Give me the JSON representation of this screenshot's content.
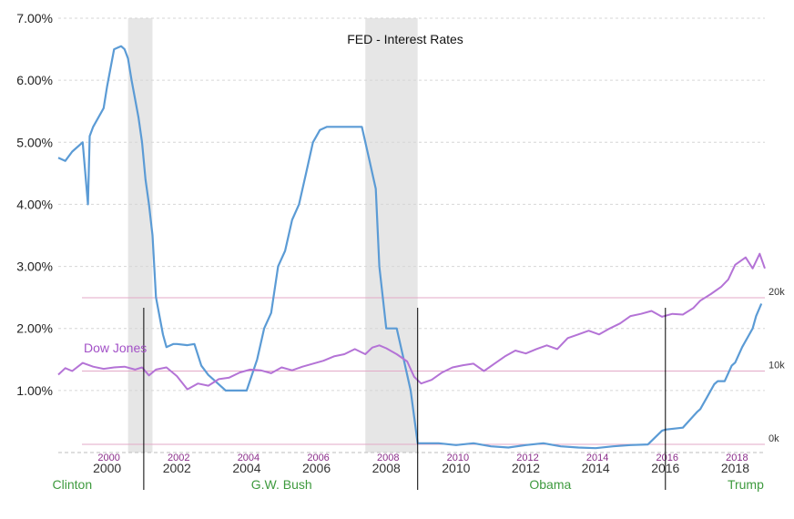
{
  "chart_data": {
    "type": "line",
    "title": "FED - Interest Rates",
    "colors": {
      "rate_line": "#5b9bd5",
      "dow_line": "#b473d6",
      "dow_gridline": "#e3a9c7",
      "recession_shade": "#e6e6e6",
      "era_text": "#3e9a3e",
      "dow_label": "#a351c7",
      "dow_year_label": "#8a2d8a"
    },
    "x_axis": {
      "range": [
        1998.6,
        2018.85
      ],
      "ticks": [
        2000,
        2002,
        2004,
        2006,
        2008,
        2010,
        2012,
        2014,
        2016,
        2018
      ],
      "tick_labels": [
        "2000",
        "2002",
        "2004",
        "2006",
        "2008",
        "2010",
        "2012",
        "2014",
        "2016",
        "2018"
      ]
    },
    "y_axis": {
      "range": [
        0,
        7.0
      ],
      "ticks": [
        1,
        2,
        3,
        4,
        5,
        6,
        7
      ],
      "tick_labels": [
        "1.00%",
        "2.00%",
        "3.00%",
        "4.00%",
        "5.00%",
        "6.00%",
        "7.00%"
      ]
    },
    "dow_axis": {
      "range": [
        0,
        20000
      ],
      "ticks": [
        0,
        10000,
        20000
      ],
      "tick_labels": [
        "0k",
        "10k",
        "20k"
      ],
      "year_labels": [
        "2000",
        "2002",
        "2004",
        "2006",
        "2008",
        "2010",
        "2012",
        "2014",
        "2016",
        "2018"
      ]
    },
    "recessions": [
      [
        2000.6,
        2001.3
      ],
      [
        2007.4,
        2008.9
      ]
    ],
    "presidency_boundaries": [
      2001.05,
      2008.9,
      2016.0
    ],
    "era_labels": [
      {
        "name": "Clinton",
        "x": 1999.0
      },
      {
        "name": "G.W. Bush",
        "x": 2005.0
      },
      {
        "name": "Obama",
        "x": 2012.7
      },
      {
        "name": "Trump",
        "x": 2018.3
      }
    ],
    "series": [
      {
        "name": "",
        "x": [
          1998.6,
          1998.8,
          1999.0,
          1999.3,
          1999.45,
          1999.5,
          1999.6,
          1999.9,
          2000.0,
          2000.2,
          2000.4,
          2000.5,
          2000.6,
          2000.7,
          2000.9,
          2001.0,
          2001.1,
          2001.2,
          2001.3,
          2001.4,
          2001.6,
          2001.7,
          2001.9,
          2002.0,
          2002.3,
          2002.5,
          2002.7,
          2002.9,
          2003.0,
          2003.4,
          2003.6,
          2003.9,
          2004.0,
          2004.3,
          2004.5,
          2004.7,
          2004.9,
          2005.1,
          2005.3,
          2005.5,
          2005.7,
          2005.9,
          2006.1,
          2006.3,
          2006.5,
          2006.7,
          2007.0,
          2007.3,
          2007.5,
          2007.6,
          2007.7,
          2007.8,
          2007.9,
          2008.0,
          2008.1,
          2008.3,
          2008.5,
          2008.7,
          2008.9,
          2009.0,
          2009.5,
          2010.0,
          2010.5,
          2011.0,
          2011.5,
          2012.0,
          2012.5,
          2013.0,
          2013.5,
          2014.0,
          2014.5,
          2015.0,
          2015.5,
          2015.9,
          2016.0,
          2016.5,
          2016.9,
          2017.0,
          2017.2,
          2017.4,
          2017.5,
          2017.7,
          2017.9,
          2018.0,
          2018.2,
          2018.4,
          2018.5,
          2018.6,
          2018.75
        ],
        "values": [
          4.75,
          4.7,
          4.85,
          5.0,
          4.0,
          5.1,
          5.25,
          5.55,
          5.9,
          6.5,
          6.55,
          6.5,
          6.35,
          6.0,
          5.4,
          5.0,
          4.4,
          4.0,
          3.5,
          2.5,
          1.9,
          1.7,
          1.75,
          1.75,
          1.73,
          1.75,
          1.4,
          1.25,
          1.2,
          1.0,
          1.0,
          1.0,
          1.0,
          1.5,
          2.0,
          2.25,
          3.0,
          3.25,
          3.75,
          4.0,
          4.5,
          5.0,
          5.2,
          5.25,
          5.25,
          5.25,
          5.25,
          5.25,
          4.75,
          4.5,
          4.25,
          3.0,
          2.5,
          2.0,
          2.0,
          2.0,
          1.5,
          1.0,
          0.15,
          0.15,
          0.15,
          0.12,
          0.15,
          0.1,
          0.08,
          0.12,
          0.15,
          0.1,
          0.08,
          0.07,
          0.1,
          0.12,
          0.13,
          0.35,
          0.37,
          0.4,
          0.65,
          0.7,
          0.9,
          1.1,
          1.15,
          1.15,
          1.4,
          1.45,
          1.7,
          1.9,
          2.0,
          2.2,
          2.4
        ]
      },
      {
        "name": "Dow Jones",
        "axis": "dow",
        "x": [
          1998.6,
          1998.8,
          1999.0,
          1999.3,
          1999.6,
          1999.9,
          2000.2,
          2000.5,
          2000.8,
          2001.0,
          2001.2,
          2001.4,
          2001.7,
          2002.0,
          2002.3,
          2002.6,
          2002.9,
          2003.2,
          2003.5,
          2003.8,
          2004.1,
          2004.4,
          2004.7,
          2005.0,
          2005.3,
          2005.6,
          2005.9,
          2006.2,
          2006.5,
          2006.8,
          2007.1,
          2007.4,
          2007.6,
          2007.8,
          2008.0,
          2008.3,
          2008.6,
          2008.8,
          2009.0,
          2009.3,
          2009.6,
          2009.9,
          2010.2,
          2010.5,
          2010.8,
          2011.1,
          2011.4,
          2011.7,
          2012.0,
          2012.3,
          2012.6,
          2012.9,
          2013.2,
          2013.5,
          2013.8,
          2014.1,
          2014.4,
          2014.7,
          2015.0,
          2015.3,
          2015.6,
          2015.9,
          2016.2,
          2016.5,
          2016.8,
          2017.0,
          2017.3,
          2017.6,
          2017.8,
          2018.0,
          2018.3,
          2018.5,
          2018.7,
          2018.85
        ],
        "values": [
          9500,
          10400,
          10000,
          11100,
          10600,
          10300,
          10500,
          10600,
          10200,
          10500,
          9400,
          10200,
          10500,
          9300,
          7500,
          8300,
          8000,
          8900,
          9100,
          9800,
          10200,
          10100,
          9700,
          10500,
          10100,
          10600,
          11000,
          11400,
          12000,
          12300,
          13000,
          12300,
          13200,
          13500,
          13100,
          12300,
          11300,
          9200,
          8300,
          8800,
          9800,
          10500,
          10800,
          11000,
          10000,
          11000,
          12000,
          12800,
          12400,
          13000,
          13500,
          13000,
          14500,
          15000,
          15500,
          15000,
          15800,
          16500,
          17500,
          17800,
          18200,
          17400,
          17800,
          17700,
          18600,
          19600,
          20500,
          21500,
          22500,
          24500,
          25500,
          24000,
          26000,
          24000
        ]
      }
    ]
  }
}
